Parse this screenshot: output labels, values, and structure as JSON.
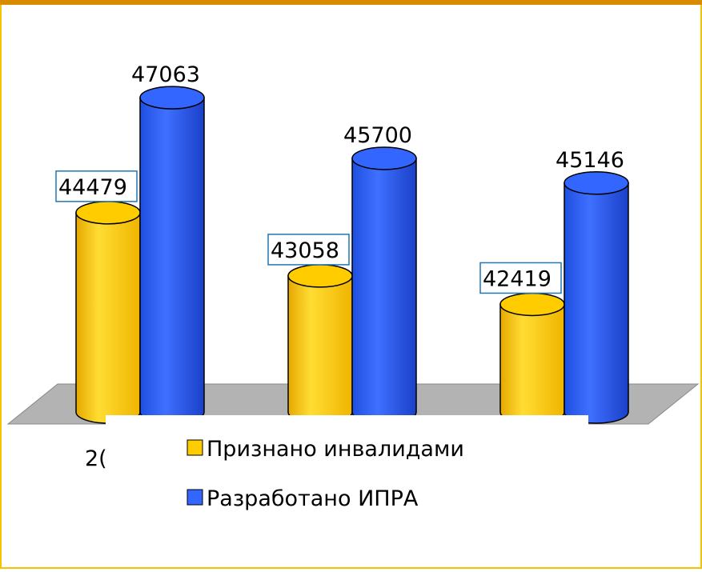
{
  "chart_data": {
    "type": "cylinder-bar",
    "categories": [
      "2(",
      null,
      null
    ],
    "series": [
      {
        "name": "Признано инвалидами",
        "color": "#ffcc00",
        "values": [
          44479,
          43058,
          42419
        ]
      },
      {
        "name": "Разработано ИПРА",
        "color": "#3366ff",
        "values": [
          47063,
          45700,
          45146
        ]
      }
    ],
    "ylim": [
      40000,
      48000
    ]
  }
}
